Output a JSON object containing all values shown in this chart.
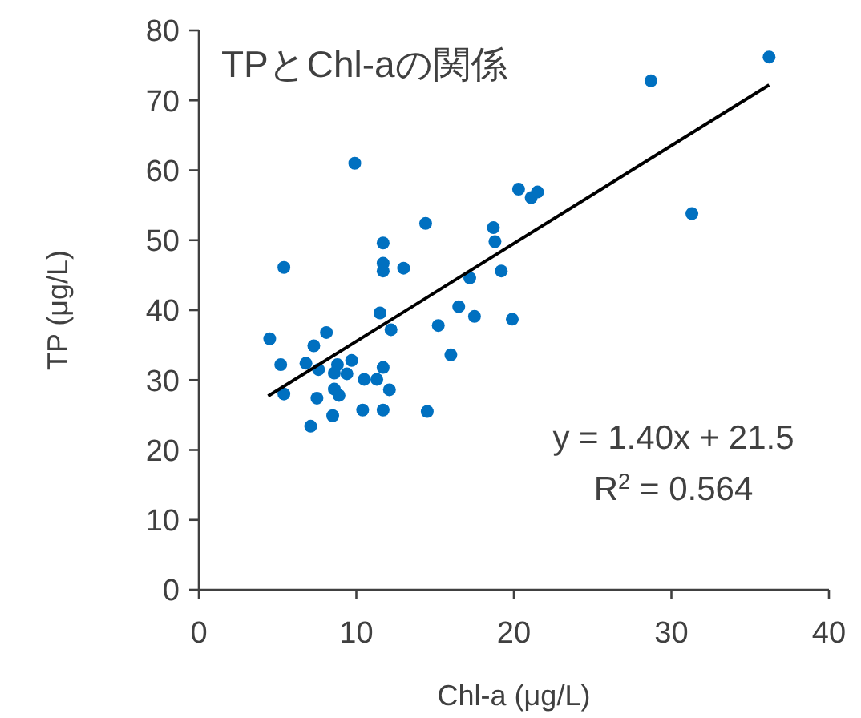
{
  "chart_data": {
    "type": "scatter",
    "title": "TPとChl-aの関係",
    "xlabel": "Chl-a (μg/L)",
    "ylabel": "TP (μg/L)",
    "xlim": [
      0,
      40
    ],
    "ylim": [
      0,
      80
    ],
    "xticks": [
      0,
      10,
      20,
      30,
      40
    ],
    "yticks": [
      0,
      10,
      20,
      30,
      40,
      50,
      60,
      70,
      80
    ],
    "grid": false,
    "marker": "circle",
    "annotations": [
      "y = 1.40x + 21.5",
      "R$^{2}$ = 0.564"
    ],
    "series": [
      {
        "color": "#0070c0",
        "x": [
          9.9,
          14.4,
          18.7,
          18.8,
          11.7,
          5.4,
          11.7,
          11.7,
          13.0,
          19.2,
          17.2,
          16.5,
          11.5,
          17.5,
          19.9,
          15.2,
          12.2,
          8.1,
          4.5,
          7.3,
          16.0,
          5.2,
          6.8,
          7.6,
          8.8,
          9.7,
          8.6,
          9.4,
          11.7,
          10.5,
          11.3,
          12.1,
          8.6,
          8.9,
          5.4,
          7.5,
          8.5,
          10.4,
          11.7,
          14.5,
          7.1,
          36.2,
          28.7,
          20.3,
          21.1,
          21.5,
          31.3
        ],
        "values": [
          61.0,
          52.4,
          51.8,
          49.8,
          49.6,
          46.1,
          46.7,
          45.6,
          46.0,
          45.6,
          44.6,
          40.5,
          39.6,
          39.1,
          38.7,
          37.8,
          37.2,
          36.8,
          35.9,
          34.9,
          33.6,
          32.2,
          32.4,
          31.5,
          32.2,
          32.8,
          31.0,
          30.9,
          31.8,
          30.1,
          30.1,
          28.6,
          28.7,
          27.8,
          28.0,
          27.4,
          24.9,
          25.7,
          25.7,
          25.5,
          23.4,
          76.2,
          72.8,
          57.3,
          56.1,
          56.9,
          53.8
        ]
      },
      {
        "type": "line",
        "color": "#000000",
        "marker": "none",
        "line_style": "solid",
        "x": [
          4.4,
          36.2
        ],
        "values": [
          27.7,
          72.2
        ]
      }
    ]
  }
}
